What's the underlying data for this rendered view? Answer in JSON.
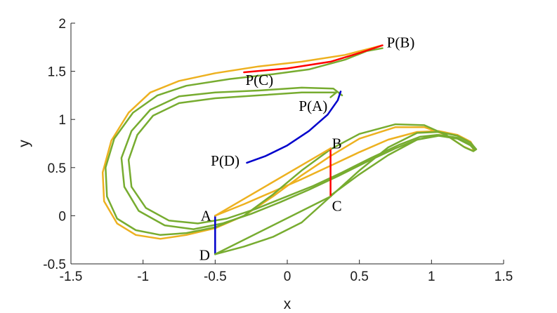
{
  "chart_data": {
    "type": "line",
    "xlabel": "x",
    "ylabel": "y",
    "xlim": [
      -1.5,
      1.5
    ],
    "ylim": [
      -0.5,
      2
    ],
    "xticks": [
      "-1.5",
      "-1",
      "-0.5",
      "0",
      "0.5",
      "1",
      "1.5"
    ],
    "yticks": [
      "-0.5",
      "0",
      "0.5",
      "1",
      "1.5",
      "2"
    ],
    "grid": false,
    "legend": "none",
    "colors": {
      "orange": "#EDB120",
      "green": "#77AC30",
      "red": "#FF0000",
      "blue": "#0000CC",
      "axis": "#262626"
    },
    "series": [
      {
        "color": "orange",
        "points": [
          [
            -0.5,
            0.0
          ],
          [
            -0.3,
            0.12
          ],
          [
            -0.1,
            0.25
          ],
          [
            0.1,
            0.38
          ],
          [
            0.3,
            0.52
          ],
          [
            0.5,
            0.66
          ],
          [
            0.7,
            0.79
          ],
          [
            0.9,
            0.87
          ],
          [
            1.05,
            0.88
          ],
          [
            1.18,
            0.84
          ],
          [
            1.27,
            0.77
          ],
          [
            1.3,
            0.7
          ],
          [
            1.28,
            0.68
          ],
          [
            1.22,
            0.72
          ],
          [
            1.1,
            0.84
          ],
          [
            0.95,
            0.92
          ],
          [
            0.75,
            0.92
          ],
          [
            0.5,
            0.8
          ],
          [
            0.3,
            0.62
          ],
          [
            0.1,
            0.42
          ],
          [
            -0.1,
            0.2
          ],
          [
            -0.3,
            0.0
          ],
          [
            -0.5,
            -0.13
          ],
          [
            -0.7,
            -0.2
          ],
          [
            -0.88,
            -0.24
          ],
          [
            -1.05,
            -0.2
          ],
          [
            -1.18,
            -0.08
          ],
          [
            -1.27,
            0.15
          ],
          [
            -1.28,
            0.45
          ],
          [
            -1.22,
            0.78
          ],
          [
            -1.1,
            1.07
          ],
          [
            -0.95,
            1.28
          ],
          [
            -0.75,
            1.4
          ],
          [
            -0.5,
            1.48
          ],
          [
            -0.2,
            1.55
          ],
          [
            0.1,
            1.6
          ],
          [
            0.4,
            1.67
          ],
          [
            0.66,
            1.77
          ]
        ]
      },
      {
        "color": "green",
        "points": [
          [
            -0.5,
            -0.4
          ],
          [
            -0.3,
            -0.32
          ],
          [
            -0.1,
            -0.22
          ],
          [
            0.1,
            -0.07
          ],
          [
            0.3,
            0.2
          ],
          [
            0.5,
            0.47
          ],
          [
            0.7,
            0.71
          ],
          [
            0.9,
            0.86
          ],
          [
            1.05,
            0.87
          ],
          [
            1.18,
            0.83
          ],
          [
            1.27,
            0.76
          ],
          [
            1.31,
            0.69
          ],
          [
            1.29,
            0.67
          ],
          [
            1.23,
            0.71
          ],
          [
            1.1,
            0.84
          ],
          [
            0.95,
            0.94
          ],
          [
            0.75,
            0.95
          ],
          [
            0.5,
            0.85
          ],
          [
            0.3,
            0.69
          ],
          [
            0.1,
            0.47
          ],
          [
            -0.1,
            0.22
          ],
          [
            -0.3,
            0.0
          ],
          [
            -0.5,
            -0.12
          ],
          [
            -0.7,
            -0.18
          ],
          [
            -0.88,
            -0.2
          ],
          [
            -1.05,
            -0.15
          ],
          [
            -1.18,
            -0.03
          ],
          [
            -1.25,
            0.2
          ],
          [
            -1.26,
            0.5
          ],
          [
            -1.2,
            0.8
          ],
          [
            -1.07,
            1.07
          ],
          [
            -0.9,
            1.25
          ],
          [
            -0.7,
            1.35
          ],
          [
            -0.4,
            1.42
          ],
          [
            -0.1,
            1.47
          ],
          [
            0.15,
            1.52
          ],
          [
            0.4,
            1.62
          ],
          [
            0.55,
            1.71
          ],
          [
            0.66,
            1.74
          ]
        ]
      },
      {
        "color": "green",
        "points": [
          [
            0.3,
            0.21
          ],
          [
            0.5,
            0.43
          ],
          [
            0.7,
            0.63
          ],
          [
            0.9,
            0.79
          ],
          [
            1.05,
            0.84
          ],
          [
            1.18,
            0.81
          ],
          [
            1.27,
            0.74
          ],
          [
            1.3,
            0.69
          ]
        ]
      },
      {
        "color": "green",
        "points": [
          [
            0.38,
            1.25
          ],
          [
            0.32,
            1.32
          ],
          [
            0.1,
            1.33
          ],
          [
            -0.2,
            1.3
          ],
          [
            -0.5,
            1.28
          ],
          [
            -0.75,
            1.24
          ],
          [
            -0.95,
            1.1
          ],
          [
            -1.08,
            0.88
          ],
          [
            -1.15,
            0.6
          ],
          [
            -1.13,
            0.3
          ],
          [
            -1.03,
            0.05
          ],
          [
            -0.85,
            -0.1
          ],
          [
            -0.65,
            -0.14
          ],
          [
            -0.45,
            -0.08
          ],
          [
            -0.25,
            0.02
          ],
          [
            -0.05,
            0.14
          ],
          [
            0.15,
            0.27
          ],
          [
            0.35,
            0.41
          ],
          [
            0.55,
            0.56
          ],
          [
            0.75,
            0.7
          ],
          [
            0.9,
            0.79
          ],
          [
            1.05,
            0.83
          ],
          [
            1.18,
            0.8
          ],
          [
            1.27,
            0.73
          ],
          [
            1.3,
            0.68
          ]
        ]
      },
      {
        "color": "green",
        "points": [
          [
            0.3,
            1.23
          ],
          [
            0.34,
            1.28
          ],
          [
            0.1,
            1.28
          ],
          [
            -0.2,
            1.25
          ],
          [
            -0.5,
            1.22
          ],
          [
            -0.75,
            1.17
          ],
          [
            -0.93,
            1.04
          ],
          [
            -1.04,
            0.84
          ],
          [
            -1.1,
            0.58
          ],
          [
            -1.08,
            0.3
          ],
          [
            -0.98,
            0.08
          ],
          [
            -0.82,
            -0.05
          ],
          [
            -0.62,
            -0.08
          ],
          [
            -0.42,
            -0.03
          ],
          [
            -0.22,
            0.07
          ],
          [
            -0.02,
            0.19
          ],
          [
            0.18,
            0.31
          ],
          [
            0.38,
            0.45
          ],
          [
            0.58,
            0.6
          ],
          [
            0.78,
            0.74
          ],
          [
            0.92,
            0.82
          ],
          [
            1.04,
            0.84
          ]
        ]
      },
      {
        "color": "red",
        "points": [
          [
            0.3,
            0.7
          ],
          [
            0.3,
            0.2
          ]
        ]
      },
      {
        "color": "red",
        "points": [
          [
            -0.3,
            1.49
          ],
          [
            0.0,
            1.53
          ],
          [
            0.3,
            1.6
          ],
          [
            0.5,
            1.69
          ],
          [
            0.66,
            1.77
          ]
        ]
      },
      {
        "color": "blue",
        "points": [
          [
            -0.5,
            0.0
          ],
          [
            -0.5,
            -0.4
          ]
        ]
      },
      {
        "color": "blue",
        "points": [
          [
            -0.28,
            0.55
          ],
          [
            -0.15,
            0.62
          ],
          [
            0.0,
            0.73
          ],
          [
            0.15,
            0.88
          ],
          [
            0.28,
            1.05
          ],
          [
            0.35,
            1.2
          ],
          [
            0.37,
            1.29
          ]
        ]
      },
      {
        "color": "orange",
        "points": [
          [
            -0.5,
            0.0
          ],
          [
            0.3,
            0.7
          ]
        ]
      },
      {
        "color": "green",
        "points": [
          [
            -0.5,
            -0.4
          ],
          [
            0.3,
            0.2
          ]
        ]
      }
    ],
    "annotations": [
      {
        "text": "P(B)",
        "x": 0.69,
        "y": 1.8,
        "anchor": "start"
      },
      {
        "text": "P(C)",
        "x": -0.29,
        "y": 1.41,
        "anchor": "start"
      },
      {
        "text": "P(A)",
        "x": 0.08,
        "y": 1.14,
        "anchor": "start"
      },
      {
        "text": "P(D)",
        "x": -0.53,
        "y": 0.57,
        "anchor": "start"
      },
      {
        "text": "B",
        "x": 0.31,
        "y": 0.75,
        "anchor": "start"
      },
      {
        "text": "C",
        "x": 0.31,
        "y": 0.1,
        "anchor": "start"
      },
      {
        "text": "A",
        "x": -0.6,
        "y": 0.0,
        "anchor": "start"
      },
      {
        "text": "D",
        "x": -0.61,
        "y": -0.41,
        "anchor": "start"
      }
    ]
  }
}
